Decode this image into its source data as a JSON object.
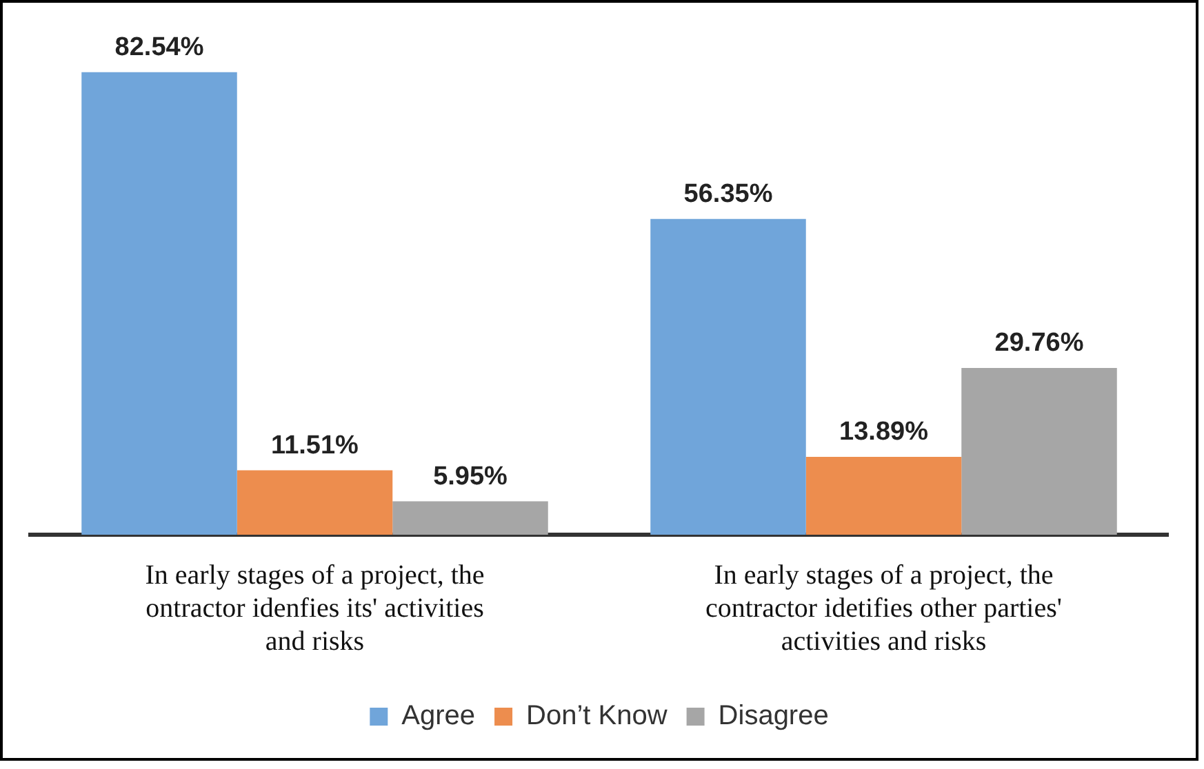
{
  "chart_data": {
    "type": "bar",
    "categories": [
      "In early stages of a project, the ontractor idenfies its' activities and risks",
      "In early stages of a project, the contractor idetifies other parties' activities and risks"
    ],
    "series": [
      {
        "name": "Agree",
        "color": "#70a5da",
        "values": [
          82.54,
          56.35
        ],
        "value_labels": [
          "82.54%",
          "56.35%"
        ]
      },
      {
        "name": "Don’t Know",
        "color": "#ed8d4e",
        "values": [
          11.51,
          13.89
        ],
        "value_labels": [
          "11.51%",
          "13.89%"
        ]
      },
      {
        "name": "Disagree",
        "color": "#a6a6a6",
        "values": [
          5.95,
          29.76
        ],
        "value_labels": [
          "5.95%",
          "29.76%"
        ]
      }
    ],
    "legend": "bottom",
    "grid": false
  }
}
